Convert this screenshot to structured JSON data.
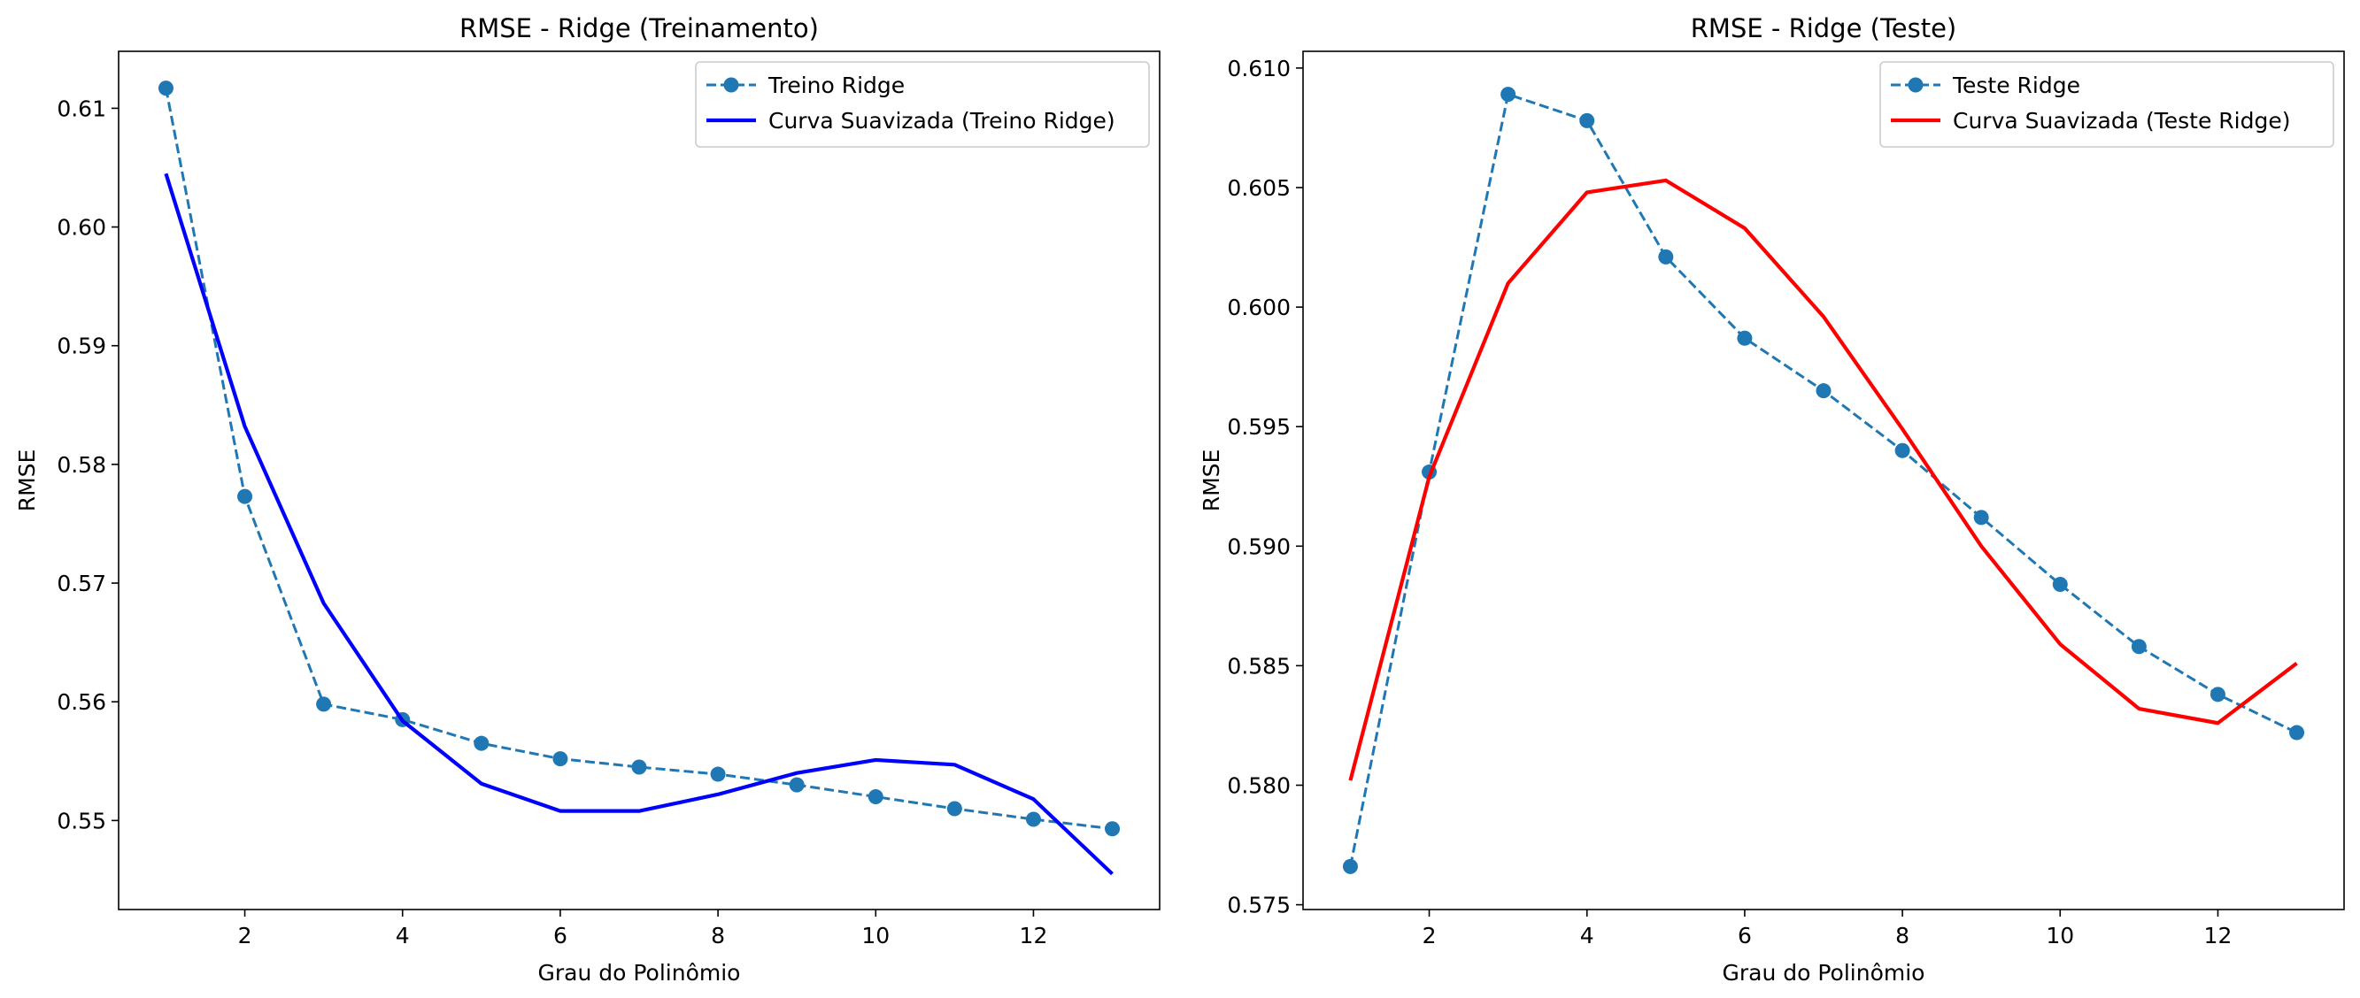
{
  "chart_data": [
    {
      "type": "line",
      "title": "RMSE - Ridge (Treinamento)",
      "xlabel": "Grau do Polinômio",
      "ylabel": "RMSE",
      "xlim": [
        0.4,
        13.6
      ],
      "ylim": [
        0.5425,
        0.6148
      ],
      "xticks": [
        2,
        4,
        6,
        8,
        10,
        12
      ],
      "yticks": [
        0.55,
        0.56,
        0.57,
        0.58,
        0.59,
        0.6,
        0.61
      ],
      "ytick_labels": [
        "0.55",
        "0.56",
        "0.57",
        "0.58",
        "0.59",
        "0.60",
        "0.61"
      ],
      "legend_position": "upper right",
      "grid": false,
      "x": [
        1,
        2,
        3,
        4,
        5,
        6,
        7,
        8,
        9,
        10,
        11,
        12,
        13
      ],
      "series": [
        {
          "name": "Treino Ridge",
          "style": "dashed-marker",
          "color": "#1f77b4",
          "values": [
            0.6117,
            0.5773,
            0.5598,
            0.5585,
            0.5565,
            0.5552,
            0.5545,
            0.5539,
            0.553,
            0.552,
            0.551,
            0.5501,
            0.5493
          ]
        },
        {
          "name": "Curva Suavizada (Treino Ridge)",
          "style": "solid",
          "color": "#0000ff",
          "values": [
            0.6045,
            0.5832,
            0.5683,
            0.5584,
            0.5531,
            0.5508,
            0.5508,
            0.5522,
            0.554,
            0.5551,
            0.5547,
            0.5518,
            0.5455
          ]
        }
      ]
    },
    {
      "type": "line",
      "title": "RMSE - Ridge (Teste)",
      "xlabel": "Grau do Polinômio",
      "ylabel": "RMSE",
      "xlim": [
        0.4,
        13.6
      ],
      "ylim": [
        0.5748,
        0.6107
      ],
      "xticks": [
        2,
        4,
        6,
        8,
        10,
        12
      ],
      "yticks": [
        0.575,
        0.58,
        0.585,
        0.59,
        0.595,
        0.6,
        0.605,
        0.61
      ],
      "ytick_labels": [
        "0.575",
        "0.580",
        "0.585",
        "0.590",
        "0.595",
        "0.600",
        "0.605",
        "0.610"
      ],
      "legend_position": "upper right",
      "grid": false,
      "x": [
        1,
        2,
        3,
        4,
        5,
        6,
        7,
        8,
        9,
        10,
        11,
        12,
        13
      ],
      "series": [
        {
          "name": "Teste Ridge",
          "style": "dashed-marker",
          "color": "#1f77b4",
          "values": [
            0.5766,
            0.5931,
            0.6089,
            0.6078,
            0.6021,
            0.5987,
            0.5965,
            0.594,
            0.5912,
            0.5884,
            0.5858,
            0.5838,
            0.5822
          ]
        },
        {
          "name": "Curva Suavizada (Teste Ridge)",
          "style": "solid",
          "color": "#ff0000",
          "values": [
            0.5802,
            0.5929,
            0.601,
            0.6048,
            0.6053,
            0.6033,
            0.5996,
            0.5949,
            0.59,
            0.5859,
            0.5832,
            0.5826,
            0.5851
          ]
        }
      ]
    }
  ]
}
